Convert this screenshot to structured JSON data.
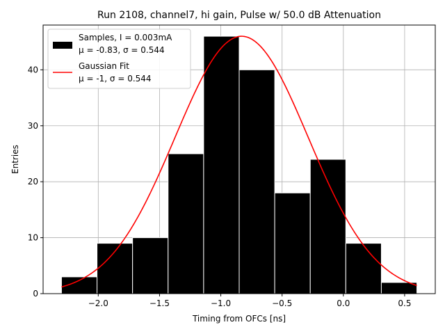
{
  "chart_data": {
    "type": "bar",
    "title": "Run 2108, channel7, hi gain, Pulse w/ 50.0 dB Attenuation",
    "xlabel": "Timing from OFCs [ns]",
    "ylabel": "Entries",
    "xlim": [
      -2.45,
      0.75
    ],
    "ylim": [
      0,
      48
    ],
    "grid": true,
    "legend_position": "top-left",
    "x_ticks": [
      -2.0,
      -1.5,
      -1.0,
      -0.5,
      0.0,
      0.5
    ],
    "x_tick_labels": [
      "−2.0",
      "−1.5",
      "−1.0",
      "−0.5",
      "0.0",
      "0.5"
    ],
    "y_ticks": [
      0,
      10,
      20,
      30,
      40
    ],
    "y_tick_labels": [
      "0",
      "10",
      "20",
      "30",
      "40"
    ],
    "bins": [
      {
        "start": -2.3,
        "end": -2.01,
        "count": 3
      },
      {
        "start": -2.01,
        "end": -1.72,
        "count": 9
      },
      {
        "start": -1.72,
        "end": -1.43,
        "count": 10
      },
      {
        "start": -1.43,
        "end": -1.14,
        "count": 25
      },
      {
        "start": -1.14,
        "end": -0.85,
        "count": 46
      },
      {
        "start": -0.85,
        "end": -0.56,
        "count": 40
      },
      {
        "start": -0.56,
        "end": -0.27,
        "count": 18
      },
      {
        "start": -0.27,
        "end": 0.02,
        "count": 24
      },
      {
        "start": 0.02,
        "end": 0.31,
        "count": 9
      },
      {
        "start": 0.31,
        "end": 0.6,
        "count": 2
      }
    ],
    "fit": {
      "amplitude": 46,
      "mean": -0.83,
      "sigma": 0.544,
      "x_range": [
        -2.3,
        0.6
      ]
    },
    "colors": {
      "bars": "#000000",
      "fit": "#ff0000",
      "grid": "#b0b0b0"
    },
    "legend": [
      {
        "line1": "Samples, I = 0.003mA",
        "line2": "μ = -0.83, σ = 0.544"
      },
      {
        "line1": "Gaussian Fit",
        "line2": "μ = -1, σ = 0.544"
      }
    ]
  }
}
